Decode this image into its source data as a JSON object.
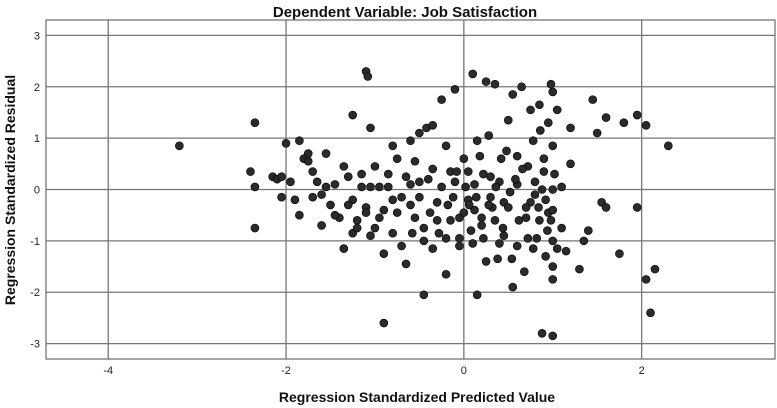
{
  "chart_data": {
    "type": "scatter",
    "title": "Dependent Variable: Job Satisfaction",
    "xlabel": "Regression Standardized Predicted Value",
    "ylabel": "Regression Standardized Residual",
    "xlim": [
      -4.7,
      3.5
    ],
    "ylim": [
      -3.3,
      3.3
    ],
    "x_ticks": [
      -4,
      -2,
      0,
      2
    ],
    "y_ticks": [
      -3,
      -2,
      -1,
      0,
      1,
      2,
      3
    ],
    "x_tick_labels": [
      "-4",
      "-2",
      "0",
      "2"
    ],
    "y_tick_labels": [
      "-3",
      "-2",
      "-1",
      "0",
      "1",
      "2",
      "3"
    ],
    "grid": true,
    "marker_color": "#2b2b2b",
    "points": [
      {
        "x": -3.2,
        "y": 0.85
      },
      {
        "x": -2.35,
        "y": 1.3
      },
      {
        "x": -2.4,
        "y": 0.35
      },
      {
        "x": -2.35,
        "y": 0.05
      },
      {
        "x": -2.35,
        "y": -0.75
      },
      {
        "x": -2.15,
        "y": 0.25
      },
      {
        "x": -2.1,
        "y": 0.2
      },
      {
        "x": -2.05,
        "y": 0.25
      },
      {
        "x": -2.0,
        "y": 0.9
      },
      {
        "x": -1.85,
        "y": 0.95
      },
      {
        "x": -1.8,
        "y": 0.6
      },
      {
        "x": -1.75,
        "y": 0.7
      },
      {
        "x": -1.7,
        "y": 0.35
      },
      {
        "x": -1.65,
        "y": 0.15
      },
      {
        "x": -1.6,
        "y": -0.1
      },
      {
        "x": -1.55,
        "y": 0.7
      },
      {
        "x": -1.5,
        "y": -0.3
      },
      {
        "x": -1.45,
        "y": 0.1
      },
      {
        "x": -1.4,
        "y": -0.55
      },
      {
        "x": -1.35,
        "y": -1.15
      },
      {
        "x": -1.3,
        "y": 0.25
      },
      {
        "x": -1.25,
        "y": -0.2
      },
      {
        "x": -1.2,
        "y": -0.6
      },
      {
        "x": -1.15,
        "y": 0.05
      },
      {
        "x": -1.1,
        "y": -0.35
      },
      {
        "x": -1.05,
        "y": -0.9
      },
      {
        "x": -1.0,
        "y": 0.45
      },
      {
        "x": -0.95,
        "y": 0.05
      },
      {
        "x": -0.9,
        "y": -0.4
      },
      {
        "x": -0.85,
        "y": 0.3
      },
      {
        "x": -0.8,
        "y": -0.85
      },
      {
        "x": -0.75,
        "y": 0.6
      },
      {
        "x": -1.05,
        "y": 1.2
      },
      {
        "x": -0.7,
        "y": -0.15
      },
      {
        "x": -0.65,
        "y": -1.45
      },
      {
        "x": -0.6,
        "y": 0.1
      },
      {
        "x": -0.55,
        "y": -0.55
      },
      {
        "x": -1.1,
        "y": 2.3
      },
      {
        "x": -1.08,
        "y": 2.2
      },
      {
        "x": -1.25,
        "y": 1.45
      },
      {
        "x": -0.5,
        "y": 0.15
      },
      {
        "x": -0.45,
        "y": -1.0
      },
      {
        "x": -0.42,
        "y": 1.2
      },
      {
        "x": -0.35,
        "y": 0.4
      },
      {
        "x": -0.3,
        "y": -0.25
      },
      {
        "x": -0.25,
        "y": 1.75
      },
      {
        "x": -0.2,
        "y": -1.65
      },
      {
        "x": -0.15,
        "y": -0.6
      },
      {
        "x": -0.1,
        "y": 0.15
      },
      {
        "x": -0.05,
        "y": -1.1
      },
      {
        "x": 0.0,
        "y": 0.6
      },
      {
        "x": 0.05,
        "y": -0.2
      },
      {
        "x": 0.1,
        "y": 2.25
      },
      {
        "x": 0.12,
        "y": -0.4
      },
      {
        "x": 0.15,
        "y": 0.95
      },
      {
        "x": 0.2,
        "y": -0.7
      },
      {
        "x": 0.22,
        "y": 0.3
      },
      {
        "x": 0.25,
        "y": 2.1
      },
      {
        "x": 0.3,
        "y": -0.15
      },
      {
        "x": 0.35,
        "y": 2.05
      },
      {
        "x": 0.38,
        "y": -1.35
      },
      {
        "x": 0.42,
        "y": 0.6
      },
      {
        "x": 0.45,
        "y": -0.9
      },
      {
        "x": 0.5,
        "y": 1.35
      },
      {
        "x": 0.55,
        "y": -1.9
      },
      {
        "x": 0.6,
        "y": 0.1
      },
      {
        "x": 0.65,
        "y": 2.0
      },
      {
        "x": 0.7,
        "y": -0.55
      },
      {
        "x": 0.75,
        "y": 1.55
      },
      {
        "x": 0.8,
        "y": -0.1
      },
      {
        "x": 0.85,
        "y": 1.65
      },
      {
        "x": 0.88,
        "y": -2.8
      },
      {
        "x": 0.9,
        "y": 0.35
      },
      {
        "x": 0.95,
        "y": -0.45
      },
      {
        "x": 0.98,
        "y": 2.05
      },
      {
        "x": 1.0,
        "y": -2.85
      },
      {
        "x": 1.0,
        "y": 1.9
      },
      {
        "x": 1.0,
        "y": -1.75
      },
      {
        "x": 1.0,
        "y": -1.0
      },
      {
        "x": 1.0,
        "y": 0.0
      },
      {
        "x": 1.0,
        "y": 0.85
      },
      {
        "x": 1.05,
        "y": 1.55
      },
      {
        "x": 1.1,
        "y": -0.75
      },
      {
        "x": 1.15,
        "y": -1.2
      },
      {
        "x": 1.2,
        "y": 0.5
      },
      {
        "x": 1.3,
        "y": -1.55
      },
      {
        "x": 1.4,
        "y": -0.8
      },
      {
        "x": 1.45,
        "y": 1.75
      },
      {
        "x": 1.5,
        "y": 1.1
      },
      {
        "x": 1.55,
        "y": -0.25
      },
      {
        "x": 1.6,
        "y": 1.4
      },
      {
        "x": 1.75,
        "y": -1.25
      },
      {
        "x": 1.8,
        "y": 1.3
      },
      {
        "x": 1.95,
        "y": 1.45
      },
      {
        "x": 1.95,
        "y": -0.35
      },
      {
        "x": 2.05,
        "y": 1.25
      },
      {
        "x": 2.05,
        "y": -1.75
      },
      {
        "x": 2.1,
        "y": -2.4
      },
      {
        "x": 2.15,
        "y": -1.55
      },
      {
        "x": 2.3,
        "y": 0.85
      },
      {
        "x": -0.9,
        "y": -2.6
      },
      {
        "x": -0.45,
        "y": -2.05
      },
      {
        "x": 0.15,
        "y": -2.05
      },
      {
        "x": -0.8,
        "y": 0.85
      },
      {
        "x": -0.6,
        "y": 0.95
      },
      {
        "x": -0.5,
        "y": 1.1
      },
      {
        "x": -0.35,
        "y": 1.25
      },
      {
        "x": -0.2,
        "y": 0.85
      },
      {
        "x": -0.1,
        "y": 1.95
      },
      {
        "x": -0.15,
        "y": 0.35
      },
      {
        "x": -0.05,
        "y": -0.55
      },
      {
        "x": 0.05,
        "y": 0.35
      },
      {
        "x": 0.08,
        "y": -0.8
      },
      {
        "x": 0.18,
        "y": 0.65
      },
      {
        "x": 0.28,
        "y": 1.05
      },
      {
        "x": 0.32,
        "y": -0.35
      },
      {
        "x": 0.4,
        "y": 0.15
      },
      {
        "x": 0.45,
        "y": -0.25
      },
      {
        "x": 0.52,
        "y": -0.05
      },
      {
        "x": 0.55,
        "y": 1.85
      },
      {
        "x": 0.6,
        "y": -1.1
      },
      {
        "x": 0.68,
        "y": -1.6
      },
      {
        "x": 0.72,
        "y": 0.45
      },
      {
        "x": 0.78,
        "y": 0.95
      },
      {
        "x": 0.82,
        "y": -0.95
      },
      {
        "x": 0.88,
        "y": 0.0
      },
      {
        "x": 0.92,
        "y": -0.2
      },
      {
        "x": 0.92,
        "y": -1.3
      },
      {
        "x": 0.95,
        "y": 1.3
      },
      {
        "x": 0.98,
        "y": -0.6
      },
      {
        "x": 1.0,
        "y": -0.4
      },
      {
        "x": 1.0,
        "y": -1.5
      },
      {
        "x": 1.02,
        "y": 0.3
      },
      {
        "x": 1.05,
        "y": -1.15
      },
      {
        "x": -1.95,
        "y": 0.15
      },
      {
        "x": -1.75,
        "y": 0.55
      },
      {
        "x": -1.6,
        "y": -0.7
      },
      {
        "x": -1.45,
        "y": -0.5
      },
      {
        "x": -1.35,
        "y": 0.45
      },
      {
        "x": -1.25,
        "y": -0.85
      },
      {
        "x": -1.15,
        "y": 0.3
      },
      {
        "x": -1.0,
        "y": -0.75
      },
      {
        "x": -0.9,
        "y": -1.25
      },
      {
        "x": -0.85,
        "y": 0.05
      },
      {
        "x": -0.75,
        "y": -0.45
      },
      {
        "x": -0.7,
        "y": -1.1
      },
      {
        "x": -0.6,
        "y": -0.3
      },
      {
        "x": -0.55,
        "y": 0.55
      },
      {
        "x": -0.45,
        "y": -0.75
      },
      {
        "x": -0.4,
        "y": 0.2
      },
      {
        "x": -0.35,
        "y": -1.15
      },
      {
        "x": -0.3,
        "y": -0.6
      },
      {
        "x": -0.25,
        "y": 0.05
      },
      {
        "x": -0.2,
        "y": -0.95
      },
      {
        "x": -0.12,
        "y": -0.15
      },
      {
        "x": -0.05,
        "y": -0.95
      },
      {
        "x": 0.02,
        "y": 0.05
      },
      {
        "x": 0.1,
        "y": -1.05
      },
      {
        "x": 0.12,
        "y": 0.1
      },
      {
        "x": 0.2,
        "y": -0.55
      },
      {
        "x": 0.25,
        "y": -1.4
      },
      {
        "x": 0.3,
        "y": 0.25
      },
      {
        "x": 0.35,
        "y": -0.6
      },
      {
        "x": 0.4,
        "y": -1.05
      },
      {
        "x": 0.48,
        "y": 0.75
      },
      {
        "x": 0.5,
        "y": -0.35
      },
      {
        "x": 0.58,
        "y": 0.2
      },
      {
        "x": 0.62,
        "y": -0.6
      },
      {
        "x": 0.66,
        "y": 0.4
      },
      {
        "x": 0.72,
        "y": -0.95
      },
      {
        "x": 0.75,
        "y": -0.25
      },
      {
        "x": 0.8,
        "y": 0.15
      },
      {
        "x": 0.85,
        "y": -0.6
      },
      {
        "x": 0.9,
        "y": 0.6
      },
      {
        "x": -2.05,
        "y": -0.15
      },
      {
        "x": -1.9,
        "y": -0.2
      },
      {
        "x": -1.85,
        "y": -0.5
      },
      {
        "x": -1.7,
        "y": -0.15
      },
      {
        "x": -1.55,
        "y": 0.05
      },
      {
        "x": -1.3,
        "y": -0.3
      },
      {
        "x": -1.2,
        "y": -0.75
      },
      {
        "x": -1.1,
        "y": -0.45
      },
      {
        "x": -1.05,
        "y": 0.05
      },
      {
        "x": -0.95,
        "y": -0.55
      },
      {
        "x": -0.8,
        "y": -0.2
      },
      {
        "x": -0.65,
        "y": 0.25
      },
      {
        "x": -0.58,
        "y": -0.85
      },
      {
        "x": -0.5,
        "y": -0.15
      },
      {
        "x": -0.38,
        "y": -0.45
      },
      {
        "x": -0.28,
        "y": -0.85
      },
      {
        "x": -0.18,
        "y": -0.3
      },
      {
        "x": -0.08,
        "y": 0.35
      },
      {
        "x": 0.0,
        "y": -0.45
      },
      {
        "x": 0.06,
        "y": -0.3
      },
      {
        "x": 0.14,
        "y": -0.15
      },
      {
        "x": 0.22,
        "y": -0.95
      },
      {
        "x": 0.28,
        "y": -0.3
      },
      {
        "x": 0.36,
        "y": 0.05
      },
      {
        "x": 0.44,
        "y": -0.75
      },
      {
        "x": 0.54,
        "y": -1.35
      },
      {
        "x": 0.6,
        "y": 0.65
      },
      {
        "x": 0.7,
        "y": -0.35
      },
      {
        "x": 0.78,
        "y": -1.15
      },
      {
        "x": 0.84,
        "y": -0.35
      },
      {
        "x": 0.86,
        "y": 1.15
      },
      {
        "x": 0.94,
        "y": -0.8
      },
      {
        "x": 1.1,
        "y": 0.05
      },
      {
        "x": 1.2,
        "y": 1.2
      },
      {
        "x": 1.35,
        "y": -1.0
      },
      {
        "x": 1.6,
        "y": -0.35
      }
    ]
  }
}
